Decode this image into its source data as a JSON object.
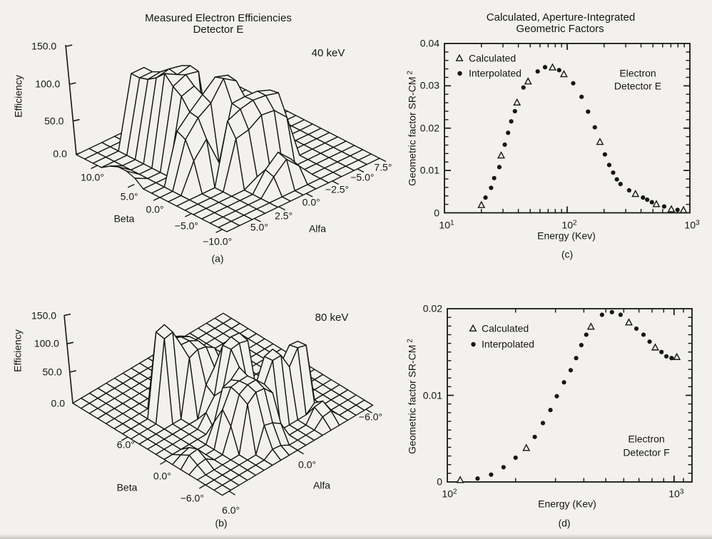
{
  "page": {
    "background": "#f2f1ee",
    "ink": "#161616"
  },
  "titles": {
    "left": [
      "Measured Electron Efficiencies",
      "Detector E"
    ],
    "right": [
      "Calculated, Aperture-Integrated",
      "Geometric Factors"
    ]
  },
  "chart_data": [
    {
      "id": "a",
      "type": "surface-3d-wireframe",
      "caption": "(a)",
      "annotation": "40 keV",
      "zlabel": "Efficiency",
      "xlabel": "Beta",
      "ylabel": "Alfa",
      "z_ticks": [
        "0.0",
        "50.0",
        "100.0",
        "150.0"
      ],
      "beta_ticks": [
        "10.0°",
        "5.0°",
        "0.0°",
        "−5.0°",
        "−10.0°"
      ],
      "alfa_ticks": [
        "5.0°",
        "2.5°",
        "0.0°",
        "−2.5°",
        "−5.0°"
      ],
      "alfa_corner_label": "7.5°",
      "zlim": [
        0,
        150
      ],
      "efficiency_grid": [
        [
          0,
          0,
          0,
          0,
          0,
          0,
          0,
          0,
          0,
          0,
          0,
          0,
          0
        ],
        [
          0,
          0,
          0,
          0,
          0,
          0,
          0,
          0,
          0,
          0,
          0,
          0,
          0
        ],
        [
          0,
          0,
          0,
          100,
          100,
          0,
          0,
          0,
          0,
          0,
          0,
          0,
          0
        ],
        [
          0,
          0,
          0,
          100,
          100,
          0,
          0,
          0,
          0,
          0,
          0,
          0,
          0
        ],
        [
          8,
          0,
          0,
          104,
          106,
          0,
          0,
          0,
          0,
          0,
          0,
          0,
          0
        ],
        [
          13,
          0,
          0,
          112,
          116,
          112,
          0,
          0,
          0,
          0,
          0,
          0,
          0
        ],
        [
          13,
          0,
          0,
          124,
          114,
          118,
          0,
          0,
          0,
          0,
          0,
          0,
          0
        ],
        [
          9,
          0,
          0,
          112,
          120,
          116,
          0,
          0,
          0,
          0,
          0,
          0,
          0
        ],
        [
          0,
          0,
          0,
          104,
          110,
          10,
          0,
          0,
          0,
          0,
          0,
          0,
          0
        ],
        [
          0,
          0,
          70,
          88,
          104,
          120,
          114,
          0,
          0,
          0,
          0,
          0,
          0
        ],
        [
          0,
          0,
          64,
          86,
          98,
          124,
          112,
          55,
          0,
          0,
          0,
          0,
          0
        ],
        [
          0,
          0,
          40,
          62,
          20,
          95,
          96,
          95,
          88,
          0,
          0,
          0,
          0
        ],
        [
          0,
          0,
          0,
          0,
          85,
          93,
          97,
          95,
          90,
          0,
          0,
          0,
          0
        ],
        [
          0,
          0,
          0,
          0,
          66,
          70,
          82,
          80,
          62,
          0,
          0,
          0,
          0
        ],
        [
          0,
          0,
          0,
          0,
          0,
          10,
          16,
          10,
          0,
          0,
          0,
          0,
          0
        ],
        [
          0,
          0,
          0,
          0,
          0,
          26,
          42,
          24,
          0,
          0,
          0,
          0,
          0
        ],
        [
          0,
          0,
          0,
          0,
          0,
          22,
          38,
          20,
          0,
          0,
          0,
          0,
          0
        ],
        [
          0,
          0,
          0,
          0,
          0,
          0,
          0,
          0,
          0,
          0,
          0,
          0,
          0
        ],
        [
          0,
          0,
          0,
          0,
          0,
          0,
          0,
          0,
          0,
          0,
          0,
          0,
          0
        ]
      ]
    },
    {
      "id": "b",
      "type": "surface-3d-wireframe",
      "caption": "(b)",
      "annotation": "80 keV",
      "zlabel": "Efficiency",
      "xlabel": "Beta",
      "ylabel": "Alfa",
      "z_ticks": [
        "0.0",
        "50.0",
        "100.0",
        "150.0"
      ],
      "beta_ticks": [
        "6.0°",
        "0.0°",
        "−6.0°"
      ],
      "alfa_ticks": [
        "6.0°",
        "0.0°",
        "−6.0°"
      ],
      "alfa_corner_label": "",
      "zlim": [
        0,
        150
      ],
      "efficiency_grid": [
        [
          0,
          0,
          0,
          0,
          0,
          0,
          0,
          0,
          0,
          0,
          0,
          0,
          0,
          0,
          0,
          0,
          0,
          0,
          0
        ],
        [
          0,
          0,
          0,
          0,
          0,
          0,
          0,
          0,
          0,
          0,
          0,
          0,
          0,
          0,
          0,
          0,
          0,
          0,
          0
        ],
        [
          0,
          0,
          0,
          0,
          0,
          0,
          0,
          0,
          0,
          0,
          0,
          0,
          0,
          0,
          0,
          0,
          0,
          0,
          0
        ],
        [
          0,
          0,
          0,
          0,
          0,
          0,
          0,
          0,
          0,
          0,
          0,
          0,
          0,
          0,
          0,
          0,
          0,
          0,
          0
        ],
        [
          0,
          0,
          0,
          0,
          0,
          0,
          0,
          0,
          0,
          0,
          0,
          0,
          0,
          0,
          0,
          0,
          0,
          0,
          0
        ],
        [
          0,
          0,
          0,
          0,
          0,
          0,
          104,
          98,
          90,
          0,
          0,
          0,
          0,
          0,
          0,
          0,
          0,
          0,
          0
        ],
        [
          0,
          0,
          0,
          0,
          140,
          144,
          112,
          106,
          98,
          0,
          0,
          0,
          0,
          0,
          0,
          0,
          0,
          0,
          0
        ],
        [
          0,
          0,
          0,
          0,
          137,
          140,
          110,
          108,
          100,
          0,
          0,
          0,
          0,
          0,
          0,
          0,
          0,
          0,
          0
        ],
        [
          0,
          0,
          0,
          0,
          0,
          0,
          96,
          102,
          98,
          88,
          0,
          0,
          0,
          0,
          0,
          0,
          0,
          0,
          0
        ],
        [
          0,
          0,
          0,
          0,
          0,
          0,
          0,
          50,
          72,
          68,
          40,
          0,
          0,
          0,
          0,
          0,
          0,
          0,
          0
        ],
        [
          0,
          0,
          0,
          0,
          0,
          0,
          20,
          40,
          118,
          124,
          122,
          0,
          0,
          0,
          0,
          0,
          0,
          0,
          0
        ],
        [
          0,
          0,
          0,
          0,
          0,
          0,
          0,
          58,
          120,
          122,
          118,
          0,
          0,
          0,
          0,
          0,
          0,
          0,
          0
        ],
        [
          0,
          8,
          12,
          0,
          0,
          30,
          80,
          85,
          98,
          60,
          45,
          50,
          42,
          35,
          30,
          0,
          0,
          0,
          0
        ],
        [
          0,
          16,
          18,
          0,
          0,
          60,
          90,
          92,
          92,
          70,
          108,
          112,
          80,
          102,
          100,
          0,
          0,
          0,
          0
        ],
        [
          0,
          8,
          10,
          0,
          0,
          40,
          86,
          94,
          94,
          78,
          110,
          110,
          82,
          106,
          102,
          0,
          0,
          0,
          0
        ],
        [
          0,
          0,
          0,
          0,
          0,
          0,
          78,
          90,
          88,
          72,
          0,
          0,
          0,
          0,
          12,
          0,
          0,
          0,
          0
        ],
        [
          0,
          0,
          0,
          0,
          0,
          0,
          0,
          42,
          38,
          28,
          0,
          0,
          0,
          22,
          24,
          0,
          0,
          0,
          0
        ],
        [
          0,
          0,
          0,
          0,
          0,
          0,
          0,
          10,
          8,
          0,
          0,
          0,
          0,
          14,
          16,
          0,
          0,
          0,
          0
        ],
        [
          0,
          0,
          0,
          0,
          0,
          0,
          0,
          0,
          0,
          0,
          0,
          0,
          0,
          0,
          0,
          0,
          0,
          0,
          0
        ]
      ]
    },
    {
      "id": "c",
      "type": "scatter",
      "caption": "(c)",
      "annotation": [
        "Electron",
        "Detector E"
      ],
      "xlabel": "Energy (Kev)",
      "ylabel_base": "Geometric factor SR-CM",
      "ylabel_sup": "2",
      "xscale": "log",
      "xlim": [
        10,
        1000
      ],
      "ylim": [
        0,
        0.04
      ],
      "y_major_ticks": [
        {
          "v": 0,
          "label": "0"
        },
        {
          "v": 0.01,
          "label": "0.01"
        },
        {
          "v": 0.02,
          "label": "0.02"
        },
        {
          "v": 0.03,
          "label": "0.03"
        },
        {
          "v": 0.04,
          "label": "0.04"
        }
      ],
      "y_minor_step": 0.002,
      "x_major_ticks": [
        {
          "v": 10,
          "base": "10",
          "exp": "1"
        },
        {
          "v": 100,
          "base": "10",
          "exp": "2"
        },
        {
          "v": 1000,
          "base": "10",
          "exp": "3"
        }
      ],
      "legend": [
        {
          "marker": "triangle",
          "label": "Calculated"
        },
        {
          "marker": "dot",
          "label": "Interpolated"
        }
      ],
      "series": [
        {
          "name": "Calculated",
          "marker": "triangle",
          "points": [
            [
              20,
              0.0018
            ],
            [
              29,
              0.0135
            ],
            [
              39,
              0.026
            ],
            [
              48,
              0.031
            ],
            [
              76,
              0.0343
            ],
            [
              94,
              0.0327
            ],
            [
              185,
              0.0167
            ],
            [
              360,
              0.0044
            ],
            [
              533,
              0.002
            ],
            [
              706,
              0.0008
            ],
            [
              887,
              0.0006
            ]
          ]
        },
        {
          "name": "Interpolated",
          "marker": "dot",
          "points": [
            [
              21.6,
              0.0036
            ],
            [
              24,
              0.0059
            ],
            [
              25.4,
              0.0082
            ],
            [
              28,
              0.0108
            ],
            [
              31,
              0.0161
            ],
            [
              33,
              0.0189
            ],
            [
              35,
              0.0216
            ],
            [
              37.5,
              0.024
            ],
            [
              44,
              0.0296
            ],
            [
              57.5,
              0.0334
            ],
            [
              66,
              0.0344
            ],
            [
              86,
              0.0337
            ],
            [
              112,
              0.0306
            ],
            [
              131,
              0.0274
            ],
            [
              148,
              0.0239
            ],
            [
              168,
              0.0202
            ],
            [
              203,
              0.0138
            ],
            [
              220,
              0.0113
            ],
            [
              237,
              0.0095
            ],
            [
              254,
              0.0079
            ],
            [
              272,
              0.0068
            ],
            [
              320,
              0.0053
            ],
            [
              415,
              0.0036
            ],
            [
              449,
              0.0031
            ],
            [
              490,
              0.0025
            ],
            [
              617,
              0.0015
            ],
            [
              793,
              0.0007
            ]
          ]
        }
      ]
    },
    {
      "id": "d",
      "type": "scatter",
      "caption": "(d)",
      "annotation": [
        "Electron",
        "Detector F"
      ],
      "xlabel": "Energy (Kev)",
      "ylabel_base": "Geometric factor SR-CM",
      "ylabel_sup": "2",
      "xscale": "log",
      "xlim": [
        100,
        1200
      ],
      "ylim": [
        0,
        0.02
      ],
      "y_major_ticks": [
        {
          "v": 0,
          "label": "0"
        },
        {
          "v": 0.01,
          "label": "0.01"
        },
        {
          "v": 0.02,
          "label": "0.02"
        }
      ],
      "y_minor_step": 0.001,
      "x_major_ticks": [
        {
          "v": 100,
          "base": "10",
          "exp": "2"
        },
        {
          "v": 1000,
          "base": "10",
          "exp": "3"
        }
      ],
      "x_extra_minors": [
        1100
      ],
      "legend": [
        {
          "marker": "triangle",
          "label": "Calculated"
        },
        {
          "marker": "dot",
          "label": "Interpolated"
        }
      ],
      "series": [
        {
          "name": "Calculated",
          "marker": "triangle",
          "points": [
            [
              114,
              0.0002
            ],
            [
              223,
              0.0039
            ],
            [
              430,
              0.0179
            ],
            [
              632,
              0.0184
            ],
            [
              826,
              0.0155
            ],
            [
              1028,
              0.0144
            ]
          ]
        },
        {
          "name": "Interpolated",
          "marker": "dot",
          "points": [
            [
              136,
              0.0004
            ],
            [
              156,
              0.00085
            ],
            [
              177,
              0.0017
            ],
            [
              200,
              0.0028
            ],
            [
              243,
              0.0052
            ],
            [
              264,
              0.0068
            ],
            [
              285,
              0.0083
            ],
            [
              304,
              0.0099
            ],
            [
              327,
              0.0115
            ],
            [
              350,
              0.0129
            ],
            [
              370,
              0.0143
            ],
            [
              390,
              0.0158
            ],
            [
              410,
              0.017
            ],
            [
              481,
              0.0193
            ],
            [
              532,
              0.0196
            ],
            [
              581,
              0.0193
            ],
            [
              682,
              0.0177
            ],
            [
              733,
              0.017
            ],
            [
              780,
              0.0162
            ],
            [
              880,
              0.015
            ],
            [
              925,
              0.0145
            ],
            [
              975,
              0.0143
            ]
          ]
        }
      ]
    }
  ]
}
